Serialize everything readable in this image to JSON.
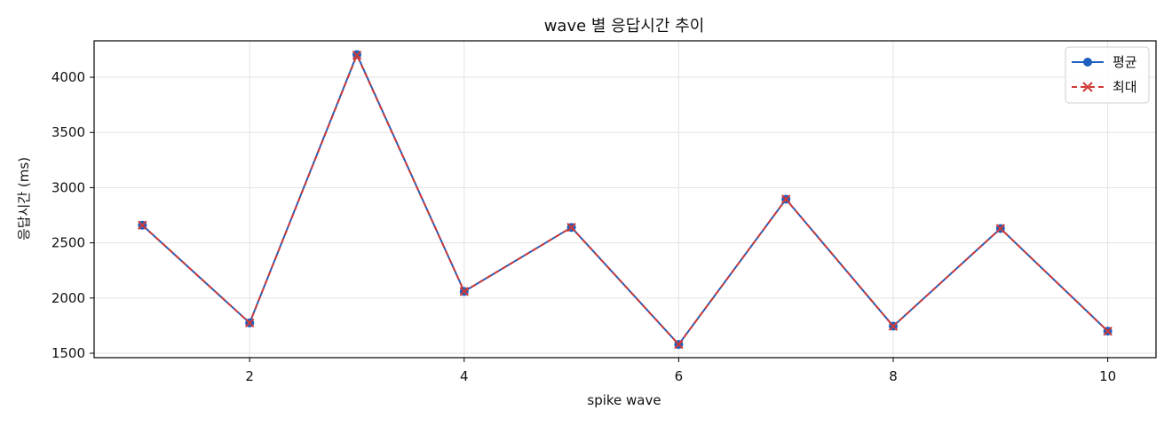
{
  "chart_data": {
    "type": "line",
    "title": "wave 별 응답시간 추이",
    "xlabel": "spike wave",
    "ylabel": "응답시간 (ms)",
    "x": [
      1,
      2,
      3,
      4,
      5,
      6,
      7,
      8,
      9,
      10
    ],
    "xlim": [
      0.55,
      10.45
    ],
    "ylim": [
      1460,
      4330
    ],
    "x_ticks": [
      2,
      4,
      6,
      8,
      10
    ],
    "y_ticks": [
      1500,
      2000,
      2500,
      3000,
      3500,
      4000
    ],
    "grid": true,
    "legend_position": "top-right",
    "series": [
      {
        "name": "평균",
        "values": [
          2660,
          1775,
          4205,
          2060,
          2640,
          1580,
          2895,
          1745,
          2630,
          1700
        ],
        "color": "#1f5fbf",
        "marker": "circle",
        "line_style": "solid"
      },
      {
        "name": "최대",
        "values": [
          2660,
          1775,
          4200,
          2060,
          2640,
          1580,
          2895,
          1745,
          2630,
          1700
        ],
        "color": "#d03a36",
        "marker": "x",
        "line_style": "dashed"
      }
    ]
  }
}
